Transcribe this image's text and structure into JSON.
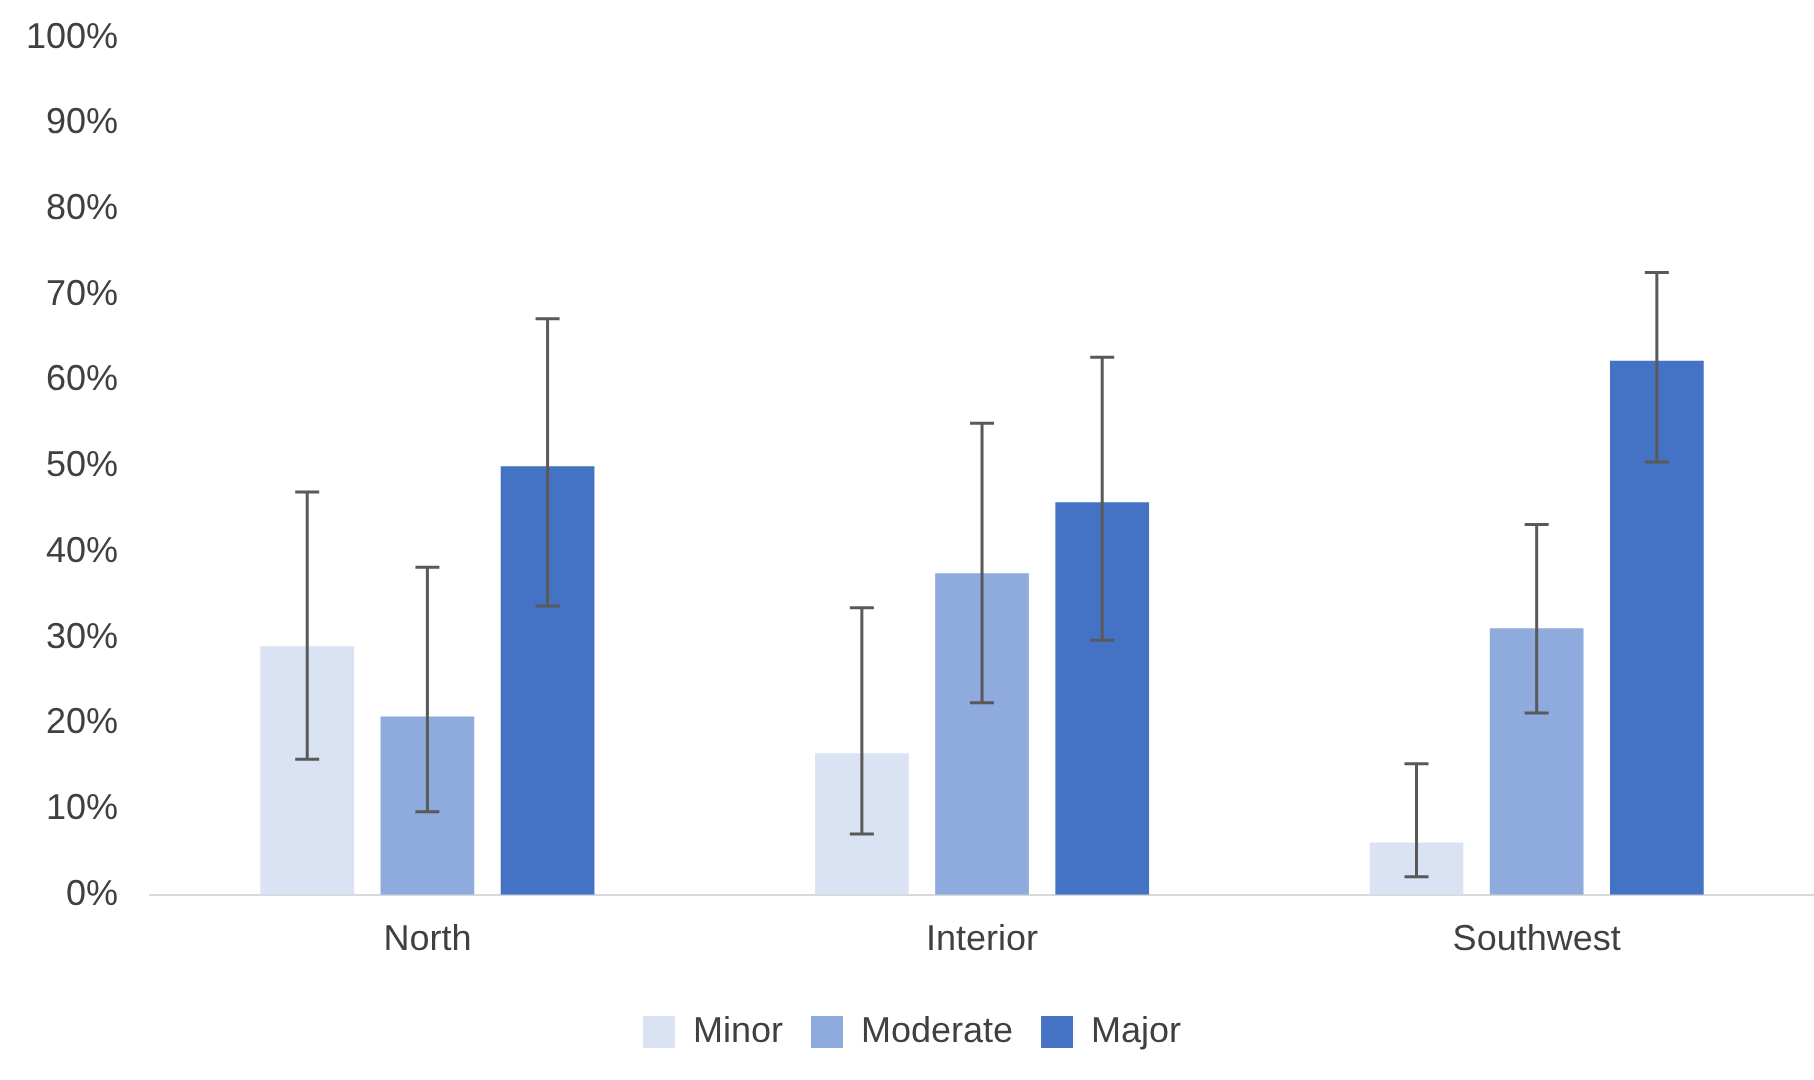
{
  "chart_data": {
    "type": "bar",
    "categories": [
      "North",
      "Interior",
      "Southwest"
    ],
    "series": [
      {
        "name": "Minor",
        "color": "#dae3f3",
        "values": [
          29.0,
          16.5,
          6.1
        ],
        "errors": [
          [
            15.8,
            47.0
          ],
          [
            7.1,
            33.5
          ],
          [
            2.1,
            15.3
          ]
        ]
      },
      {
        "name": "Moderate",
        "color": "#8faadc",
        "values": [
          20.8,
          37.5,
          31.1
        ],
        "errors": [
          [
            9.7,
            38.2
          ],
          [
            22.4,
            55.0
          ],
          [
            21.2,
            43.2
          ]
        ]
      },
      {
        "name": "Major",
        "color": "#4472c4",
        "values": [
          50.0,
          45.8,
          62.3
        ],
        "errors": [
          [
            33.7,
            67.2
          ],
          [
            29.7,
            62.7
          ],
          [
            50.5,
            72.6
          ]
        ]
      }
    ],
    "ylim": [
      0,
      100
    ],
    "yticks": [
      {
        "value": 0,
        "label": "0%"
      },
      {
        "value": 10,
        "label": "10%"
      },
      {
        "value": 20,
        "label": "20%"
      },
      {
        "value": 30,
        "label": "30%"
      },
      {
        "value": 40,
        "label": "40%"
      },
      {
        "value": 50,
        "label": "50%"
      },
      {
        "value": 60,
        "label": "60%"
      },
      {
        "value": 70,
        "label": "70%"
      },
      {
        "value": 80,
        "label": "80%"
      },
      {
        "value": 90,
        "label": "90%"
      },
      {
        "value": 100,
        "label": "100%"
      }
    ],
    "grid": false,
    "legend": "bottom"
  }
}
